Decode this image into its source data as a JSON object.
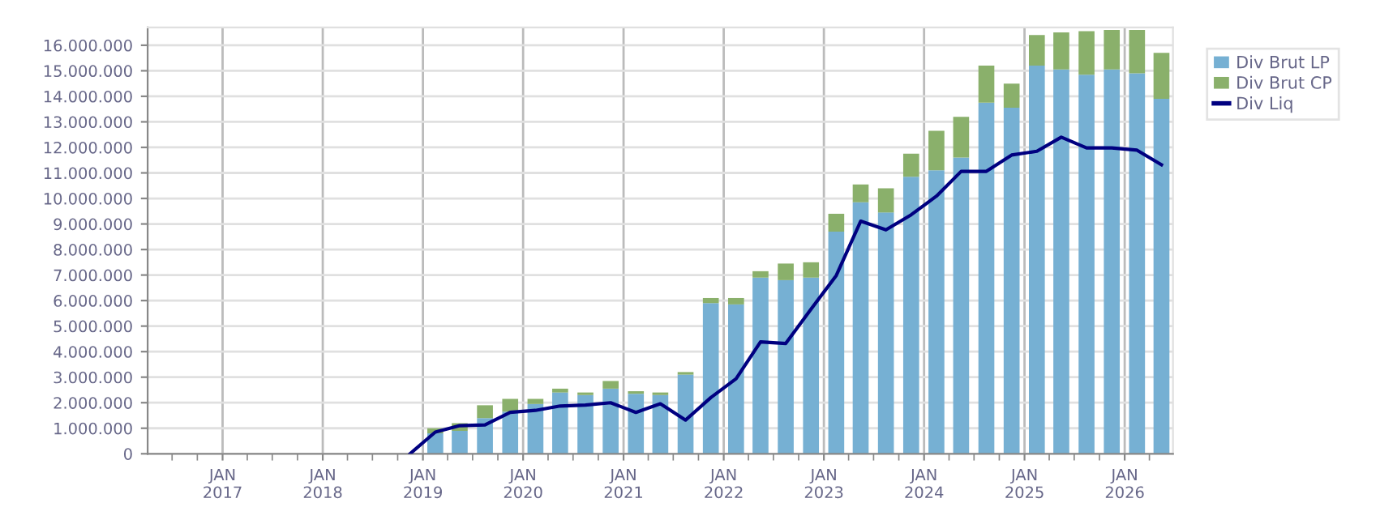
{
  "chart_data": {
    "type": "bar",
    "stacked": true,
    "x": [
      "2019-02-15",
      "2019-05-15",
      "2019-08-15",
      "2019-11-15",
      "2020-02-15",
      "2020-05-15",
      "2020-08-15",
      "2020-11-15",
      "2021-02-15",
      "2021-05-15",
      "2021-08-15",
      "2021-11-15",
      "2022-02-15",
      "2022-05-15",
      "2022-08-15",
      "2022-11-15",
      "2023-02-15",
      "2023-05-15",
      "2023-08-15",
      "2023-11-15",
      "2024-02-15",
      "2024-05-15",
      "2024-08-15",
      "2024-11-15",
      "2025-02-15",
      "2025-05-15",
      "2025-08-15",
      "2025-11-15",
      "2026-02-15",
      "2026-05-15"
    ],
    "series": [
      {
        "name": "Div Brut LP",
        "color": "#76b0d3",
        "values": [
          800000,
          900000,
          1400000,
          1650000,
          1950000,
          2400000,
          2300000,
          2550000,
          2350000,
          2300000,
          3100000,
          5900000,
          5850000,
          6900000,
          6800000,
          6900000,
          8700000,
          9850000,
          9450000,
          10850000,
          11100000,
          11600000,
          13750000,
          13550000,
          15200000,
          15050000,
          14850000,
          15050000,
          14900000,
          13900000
        ]
      },
      {
        "name": "Div Brut CP",
        "color": "#8ab06b",
        "values": [
          200000,
          300000,
          500000,
          500000,
          200000,
          150000,
          100000,
          300000,
          100000,
          100000,
          100000,
          200000,
          250000,
          250000,
          650000,
          600000,
          700000,
          700000,
          950000,
          900000,
          1550000,
          1600000,
          1450000,
          950000,
          1200000,
          1450000,
          1700000,
          1550000,
          1700000,
          1800000
        ]
      },
      {
        "name": "Div Liq",
        "type": "line",
        "color": "#000080",
        "x": [
          "2018-11-15",
          "2019-02-15",
          "2019-05-15",
          "2019-08-15",
          "2019-11-15",
          "2020-02-15",
          "2020-05-15",
          "2020-08-15",
          "2020-11-15",
          "2021-02-15",
          "2021-05-15",
          "2021-08-15",
          "2021-11-15",
          "2022-02-15",
          "2022-05-15",
          "2022-08-15",
          "2022-11-15",
          "2023-02-15",
          "2023-05-15",
          "2023-08-15",
          "2023-11-15",
          "2024-02-15",
          "2024-05-15",
          "2024-08-15",
          "2024-11-15",
          "2025-02-15",
          "2025-05-15",
          "2025-08-15",
          "2025-11-15",
          "2026-02-15",
          "2026-05-15"
        ],
        "values": [
          0,
          850000,
          1100000,
          1130000,
          1620000,
          1700000,
          1870000,
          1910000,
          2000000,
          1620000,
          1960000,
          1320000,
          2200000,
          2940000,
          4380000,
          4320000,
          5660000,
          6980000,
          9110000,
          8770000,
          9360000,
          10090000,
          11060000,
          11060000,
          11700000,
          11850000,
          12400000,
          11980000,
          11980000,
          11890000,
          11320000
        ]
      }
    ],
    "ylim": [
      0,
      16700000
    ],
    "yticks": [
      0,
      {
        "value": 1000000,
        "label": "1.000.000"
      },
      {
        "value": 2000000,
        "label": "2.000.000"
      },
      {
        "value": 3000000,
        "label": "3.000.000"
      },
      {
        "value": 4000000,
        "label": "4.000.000"
      },
      {
        "value": 5000000,
        "label": "5.000.000"
      },
      {
        "value": 6000000,
        "label": "6.000.000"
      },
      {
        "value": 7000000,
        "label": "7.000.000"
      },
      {
        "value": 8000000,
        "label": "8.000.000"
      },
      {
        "value": 9000000,
        "label": "9.000.000"
      },
      {
        "value": 10000000,
        "label": "10.000.000"
      },
      {
        "value": 11000000,
        "label": "11.000.000"
      },
      {
        "value": 12000000,
        "label": "12.000.000"
      },
      {
        "value": 13000000,
        "label": "13.000.000"
      },
      {
        "value": 14000000,
        "label": "14.000.000"
      },
      {
        "value": 15000000,
        "label": "15.000.000"
      },
      {
        "value": 16000000,
        "label": "16.000.000"
      }
    ],
    "xlim": [
      "2016-04-03",
      "2026-06-26"
    ],
    "xticks": [
      {
        "value": "2017-01-01",
        "label": "JAN\n2017"
      },
      {
        "value": "2018-01-01",
        "label": "JAN\n2018"
      },
      {
        "value": "2019-01-01",
        "label": "JAN\n2019"
      },
      {
        "value": "2020-01-01",
        "label": "JAN\n2020"
      },
      {
        "value": "2021-01-01",
        "label": "JAN\n2021"
      },
      {
        "value": "2022-01-01",
        "label": "JAN\n2022"
      },
      {
        "value": "2023-01-01",
        "label": "JAN\n2023"
      },
      {
        "value": "2024-01-01",
        "label": "JAN\n2024"
      },
      {
        "value": "2025-01-01",
        "label": "JAN\n2025"
      },
      {
        "value": "2026-01-01",
        "label": "JAN\n2026"
      }
    ],
    "grid": true,
    "legend": "right",
    "line_style": "solid",
    "marker": "none"
  }
}
